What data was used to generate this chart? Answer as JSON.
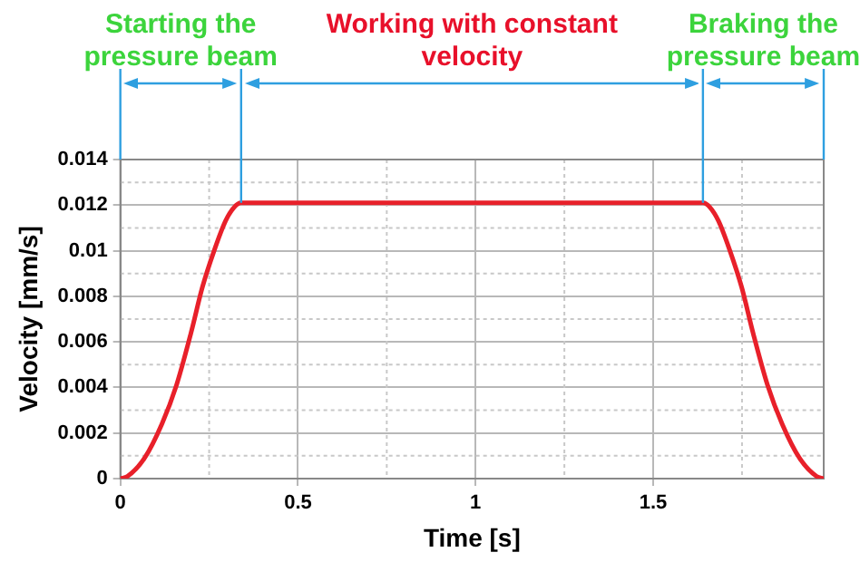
{
  "chart_data": {
    "type": "line",
    "xlabel": "Time [s]",
    "ylabel": "Velocity [mm/s]",
    "xlim": [
      0,
      1.98
    ],
    "xticks": [
      0,
      0.5,
      1,
      1.5
    ],
    "ylim": [
      0,
      0.014
    ],
    "yticks": [
      0,
      0.002,
      0.004,
      0.006,
      0.008,
      0.01,
      0.012,
      0.014
    ],
    "grid": true,
    "legend": false,
    "marker": "none",
    "line_style": "solid",
    "series": [
      {
        "color": "#e8202a",
        "x": [
          0,
          0.02,
          0.068,
          0.117,
          0.158,
          0.199,
          0.231,
          0.264,
          0.296,
          0.32,
          0.34,
          1.64,
          1.66,
          1.684,
          1.716,
          1.749,
          1.781,
          1.822,
          1.863,
          1.912,
          1.96,
          1.98
        ],
        "values": [
          0,
          0.0001,
          0.0009,
          0.0024,
          0.0041,
          0.0064,
          0.0084,
          0.01,
          0.0113,
          0.0119,
          0.0121,
          0.0121,
          0.0119,
          0.0113,
          0.01,
          0.0084,
          0.0064,
          0.0041,
          0.0024,
          0.0009,
          0.0001,
          0
        ]
      }
    ],
    "ref_lines": [
      {
        "axis": "x",
        "value": 0.34,
        "color": "#2e9fe0"
      },
      {
        "axis": "x",
        "value": 1.64,
        "color": "#2e9fe0"
      }
    ],
    "annotations": [
      "Starting the pressure beam",
      "Working with constant velocity",
      "Braking the pressure beam"
    ]
  }
}
